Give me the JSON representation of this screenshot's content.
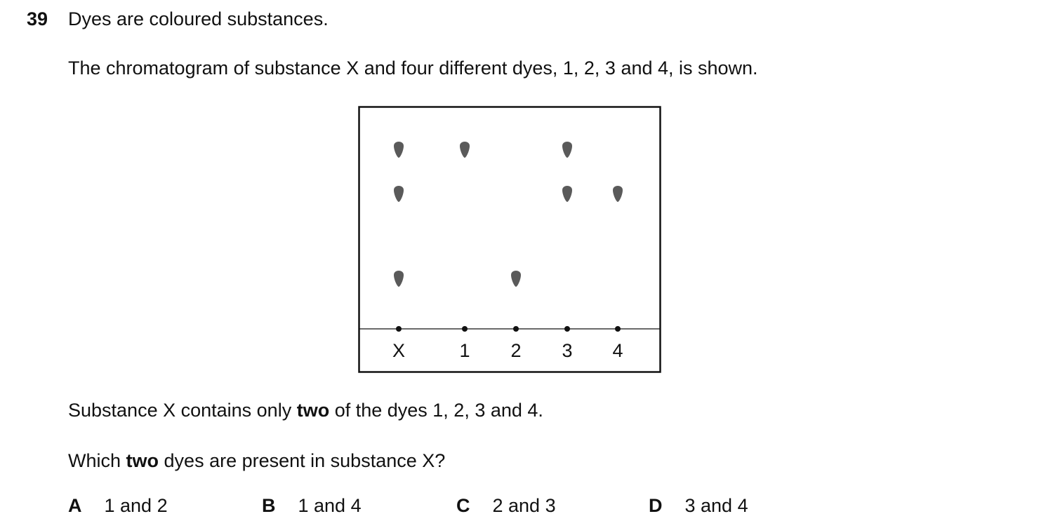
{
  "question": {
    "number": "39",
    "intro": "Dyes are coloured substances.",
    "description": "The chromatogram of substance X and four different dyes, 1, 2, 3 and 4, is shown.",
    "statement": {
      "pre": "Substance X contains only ",
      "bold": "two",
      "post": " of the dyes 1, 2, 3 and 4."
    },
    "prompt": {
      "pre": "Which ",
      "bold": "two",
      "post": " dyes are present in substance X?"
    }
  },
  "chromatogram": {
    "spot_color": "#5a5a5a",
    "lanes": [
      {
        "label": "X",
        "spots": [
          "high",
          "mid",
          "low"
        ]
      },
      {
        "label": "1",
        "spots": [
          "high"
        ]
      },
      {
        "label": "2",
        "spots": [
          "low"
        ]
      },
      {
        "label": "3",
        "spots": [
          "high",
          "mid"
        ]
      },
      {
        "label": "4",
        "spots": [
          "mid"
        ]
      }
    ]
  },
  "options": [
    {
      "letter": "A",
      "text": "1 and 2"
    },
    {
      "letter": "B",
      "text": "1 and 4"
    },
    {
      "letter": "C",
      "text": "2 and 3"
    },
    {
      "letter": "D",
      "text": "3 and 4"
    }
  ]
}
